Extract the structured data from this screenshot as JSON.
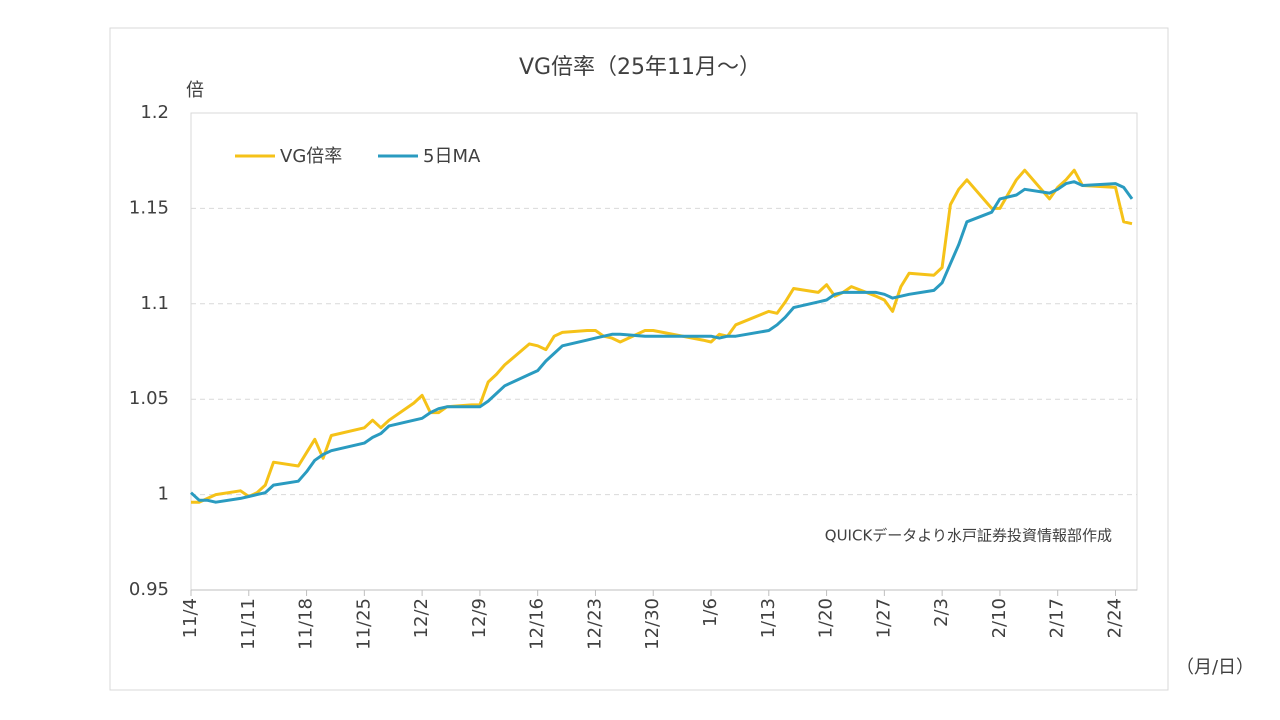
{
  "chart_data": {
    "type": "line",
    "title": "VG倍率（25年11月〜）",
    "y_label": "倍",
    "x_label": "（月/日）",
    "annotation": "QUICKデータより水戸証券投資情報部作成",
    "x": [
      "11/4",
      "11/5",
      "11/6",
      "11/7",
      "11/10",
      "11/11",
      "11/12",
      "11/13",
      "11/14",
      "11/17",
      "11/18",
      "11/19",
      "11/20",
      "11/21",
      "11/25",
      "11/26",
      "11/27",
      "11/28",
      "12/1",
      "12/2",
      "12/3",
      "12/4",
      "12/5",
      "12/8",
      "12/9",
      "12/10",
      "12/11",
      "12/12",
      "12/15",
      "12/16",
      "12/17",
      "12/18",
      "12/19",
      "12/22",
      "12/23",
      "12/24",
      "12/25",
      "12/26",
      "12/29",
      "12/30",
      "1/5",
      "1/6",
      "1/7",
      "1/8",
      "1/9",
      "1/13",
      "1/14",
      "1/15",
      "1/16",
      "1/19",
      "1/20",
      "1/21",
      "1/22",
      "1/23",
      "1/26",
      "1/27",
      "1/28",
      "1/29",
      "1/30",
      "2/2",
      "2/3",
      "2/4",
      "2/5",
      "2/6",
      "2/9",
      "2/10",
      "2/12",
      "2/13",
      "2/16",
      "2/17",
      "2/18",
      "2/19",
      "2/20",
      "2/24",
      "2/25",
      "2/26"
    ],
    "series": [
      {
        "name": "VG倍率",
        "color": "#f5c218",
        "values": [
          0.996,
          0.996,
          0.998,
          1.0,
          1.002,
          0.999,
          1.001,
          1.005,
          1.017,
          1.015,
          1.022,
          1.029,
          1.019,
          1.031,
          1.035,
          1.039,
          1.035,
          1.039,
          1.048,
          1.052,
          1.043,
          1.043,
          1.046,
          1.047,
          1.047,
          1.059,
          1.063,
          1.068,
          1.079,
          1.078,
          1.076,
          1.083,
          1.085,
          1.086,
          1.086,
          1.083,
          1.082,
          1.08,
          1.086,
          1.086,
          1.081,
          1.08,
          1.084,
          1.083,
          1.089,
          1.096,
          1.095,
          1.101,
          1.108,
          1.106,
          1.11,
          1.104,
          1.106,
          1.109,
          1.104,
          1.102,
          1.096,
          1.109,
          1.116,
          1.115,
          1.119,
          1.152,
          1.16,
          1.165,
          1.15,
          1.15,
          1.165,
          1.17,
          1.155,
          1.161,
          1.165,
          1.17,
          1.162,
          1.161,
          1.143,
          1.142
        ]
      },
      {
        "name": "5日MA",
        "color": "#2a9bc0",
        "values": [
          1.001,
          0.997,
          0.997,
          0.996,
          0.998,
          0.999,
          1.0,
          1.001,
          1.005,
          1.007,
          1.012,
          1.018,
          1.021,
          1.023,
          1.027,
          1.03,
          1.032,
          1.036,
          1.039,
          1.04,
          1.043,
          1.045,
          1.046,
          1.046,
          1.046,
          1.049,
          1.053,
          1.057,
          1.063,
          1.065,
          1.07,
          1.074,
          1.078,
          1.081,
          1.082,
          1.083,
          1.084,
          1.084,
          1.083,
          1.083,
          1.083,
          1.083,
          1.082,
          1.083,
          1.083,
          1.086,
          1.089,
          1.093,
          1.098,
          1.101,
          1.102,
          1.105,
          1.106,
          1.106,
          1.106,
          1.105,
          1.103,
          1.104,
          1.105,
          1.107,
          1.111,
          1.121,
          1.131,
          1.143,
          1.148,
          1.155,
          1.157,
          1.16,
          1.158,
          1.16,
          1.163,
          1.164,
          1.162,
          1.163,
          1.161,
          1.155
        ]
      }
    ],
    "xlim": [
      "11/4",
      "2/26"
    ],
    "xticks": [
      "11/4",
      "11/11",
      "11/18",
      "11/25",
      "12/2",
      "12/9",
      "12/16",
      "12/23",
      "12/30",
      "1/6",
      "1/13",
      "1/20",
      "1/27",
      "2/3",
      "2/10",
      "2/17",
      "2/24"
    ],
    "ylim": [
      0.95,
      1.2
    ],
    "yticks": [
      0.95,
      1,
      1.05,
      1.1,
      1.15,
      1.2
    ],
    "grid": true,
    "legend": "top-left"
  }
}
